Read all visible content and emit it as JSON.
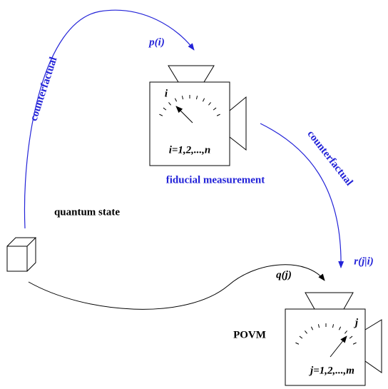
{
  "source": {
    "label": "quantum state"
  },
  "fiducial": {
    "label": "fiducial measurement",
    "pointer": "i",
    "range": "i=1,2,...,n"
  },
  "povm": {
    "label": "POVM",
    "pointer": "j",
    "range": "j=1,2,...,m"
  },
  "edges": [
    {
      "label": "counterfactual",
      "probability": "p(i)"
    },
    {
      "label": "counterfactual",
      "probability": "r(j|i)"
    },
    {
      "probability": "q(j)"
    }
  ]
}
